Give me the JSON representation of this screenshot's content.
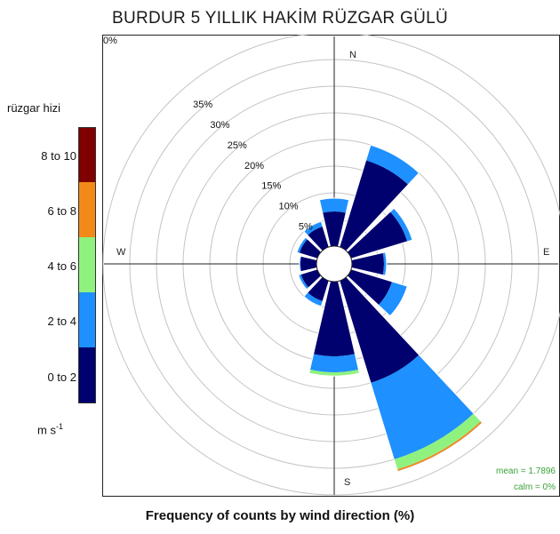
{
  "title": "BURDUR 5 YILLIK HAKİM RÜZGAR GÜLÜ",
  "subtitle": "Frequency of counts by wind direction (%)",
  "legend": {
    "title": "rüzgar hizi",
    "units_base": "m s",
    "units_exp": "-1",
    "bins": [
      {
        "label": "8 to 10",
        "color": "#7f0000"
      },
      {
        "label": "6 to 8",
        "color": "#f28a1a"
      },
      {
        "label": "4 to 6",
        "color": "#8ff27f"
      },
      {
        "label": "2 to 4",
        "color": "#1e90ff"
      },
      {
        "label": "0 to 2",
        "color": "#00006e"
      }
    ]
  },
  "stats": {
    "mean": "mean = 1.7896",
    "calm": "calm = 0%"
  },
  "chart_data": {
    "type": "windrose",
    "title": "BURDUR 5 YILLIK HAKİM RÜZGAR GÜLÜ",
    "xlabel": "Frequency of counts by wind direction (%)",
    "compass_labels": {
      "N": "N",
      "E": "E",
      "S": "S",
      "W": "W"
    },
    "rlim": [
      0,
      40
    ],
    "ring_values": [
      5,
      10,
      15,
      20,
      25,
      30,
      35
    ],
    "ring_labels": [
      "5%",
      "10%",
      "15%",
      "20%",
      "25%",
      "30%",
      "35%"
    ],
    "edge_label": "0%",
    "directions_deg": [
      0,
      30,
      60,
      90,
      120,
      150,
      180,
      210,
      240,
      270,
      300,
      330
    ],
    "speed_bins": [
      "0 to 2",
      "2 to 4",
      "4 to 6",
      "6 to 8",
      "8 to 10"
    ],
    "series": [
      {
        "name": "0 to 2",
        "values": [
          6.5,
          17.0,
          11.0,
          6.0,
          8.0,
          20.0,
          14.0,
          4.0,
          3.2,
          3.0,
          3.5,
          4.0
        ]
      },
      {
        "name": "2 to 4",
        "values": [
          2.5,
          3.0,
          1.0,
          0.5,
          3.0,
          15.0,
          3.0,
          1.0,
          0.5,
          0.2,
          0.5,
          1.0
        ]
      },
      {
        "name": "4 to 6",
        "values": [
          0,
          0,
          0,
          0,
          0,
          2.0,
          0.7,
          0,
          0,
          0,
          0,
          0
        ]
      },
      {
        "name": "6 to 8",
        "values": [
          0,
          0,
          0,
          0,
          0,
          0.3,
          0,
          0,
          0,
          0,
          0,
          0
        ]
      },
      {
        "name": "8 to 10",
        "values": [
          0,
          0,
          0,
          0,
          0,
          0.1,
          0,
          0,
          0,
          0,
          0,
          0
        ]
      }
    ]
  }
}
